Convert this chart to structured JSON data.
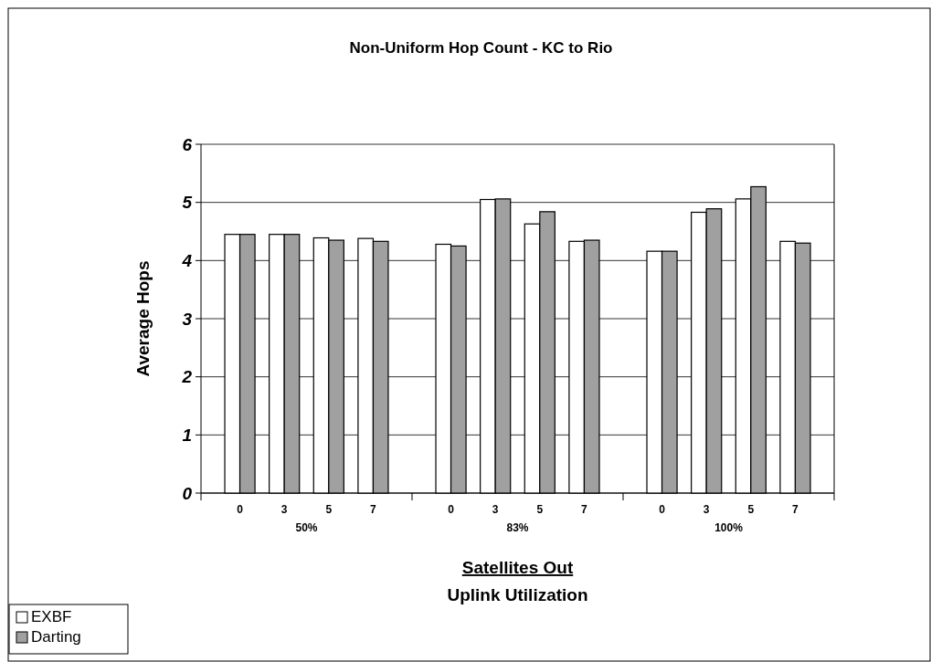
{
  "chart_data": {
    "type": "bar",
    "title": "Non-Uniform Hop Count - KC to Rio",
    "xlabel": "Satellites Out",
    "ylabel": "Average Hops",
    "categories": [
      "0",
      "3",
      "5",
      "7",
      "0",
      "3",
      "5",
      "7",
      "0",
      "3",
      "5",
      "7"
    ],
    "series": [
      {
        "name": "EXBF",
        "color": "#ffffff",
        "values": [
          4.45,
          4.45,
          4.39,
          4.38,
          4.28,
          5.05,
          4.63,
          4.33,
          4.16,
          4.83,
          5.06,
          4.33
        ]
      },
      {
        "name": "Darting",
        "color": "#a0a0a0",
        "values": [
          4.45,
          4.45,
          4.35,
          4.33,
          4.25,
          5.06,
          4.84,
          4.35,
          4.16,
          4.89,
          5.27,
          4.3
        ]
      }
    ],
    "annotations": [
      "50%",
      "83%",
      "100%",
      "Uplink Utilization"
    ],
    "ylim": [
      0,
      6
    ],
    "yticks": [
      0,
      1,
      2,
      3,
      4,
      5,
      6
    ],
    "grid": "y",
    "legend": "bottom left"
  }
}
